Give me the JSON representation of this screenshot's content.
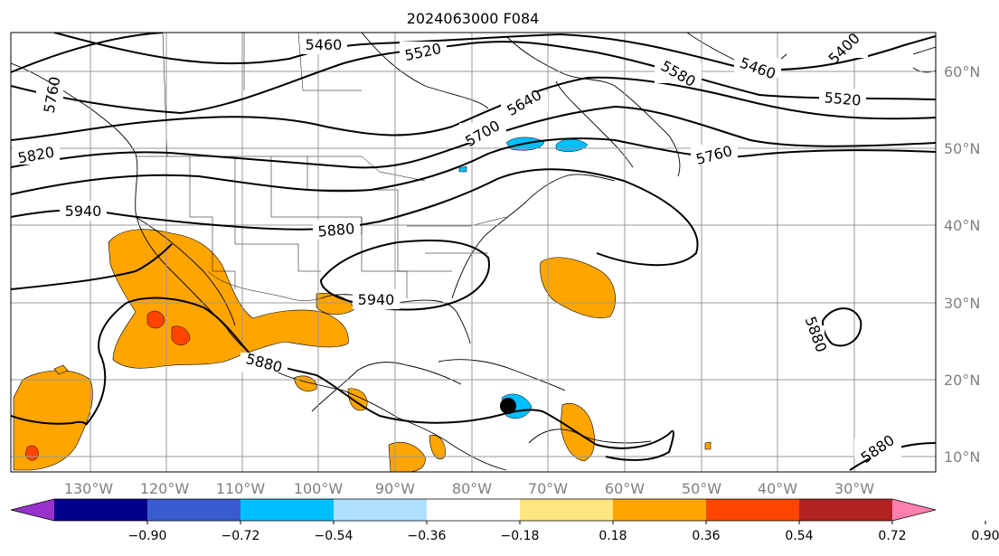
{
  "title": "2024063000 F084",
  "lon_labels": [
    "130°W",
    "120°W",
    "110°W",
    "100°W",
    "90°W",
    "80°W",
    "70°W",
    "60°W",
    "50°W",
    "40°W",
    "30°W"
  ],
  "lat_labels": [
    "60°N",
    "50°N",
    "40°N",
    "30°N",
    "20°N",
    "10°N"
  ],
  "contour_labels": [
    "5460",
    "5520",
    "5580",
    "5460",
    "5520",
    "5400",
    "5640",
    "5700",
    "5760",
    "5820",
    "5940",
    "5880",
    "5940",
    "5880",
    "5880",
    "5880",
    "5760"
  ],
  "colorbar": {
    "colors": [
      "#9932cc",
      "#00008b",
      "#3a5bd0",
      "#00bfff",
      "#b0e0ff",
      "#ffffff",
      "#ffe680",
      "#ffa500",
      "#ff4500",
      "#b22222",
      "#ff7fae"
    ],
    "ticks": [
      "−0.90",
      "−0.72",
      "−0.54",
      "−0.36",
      "−0.18",
      "0.18",
      "0.36",
      "0.54",
      "0.72",
      "0.90"
    ]
  },
  "storm_marker": "storm-center"
}
